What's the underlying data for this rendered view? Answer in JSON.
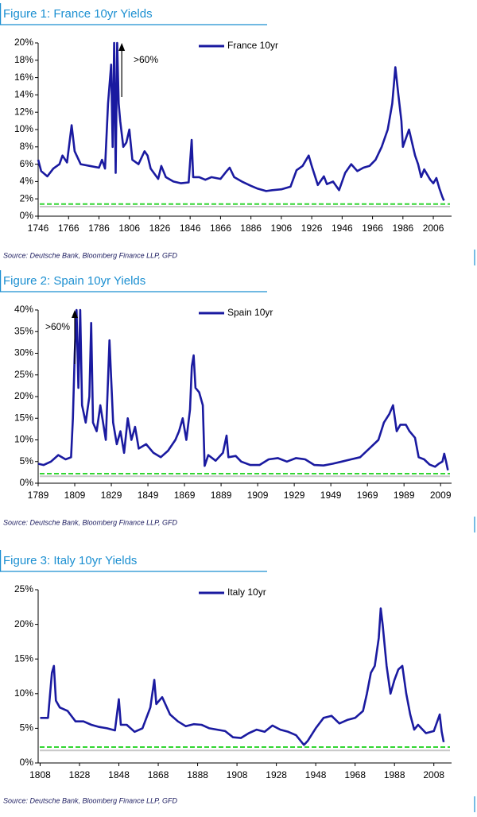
{
  "chart_data": [
    {
      "type": "line",
      "title": "Figure 1: France 10yr Yields",
      "source": "Source: Deutsche Bank, Bloomberg Finance LLP, GFD",
      "annotation": ">60%",
      "legend": "top",
      "xlim": [
        1746,
        2018
      ],
      "ylim": [
        0,
        20
      ],
      "xticks": [
        1746,
        1766,
        1786,
        1806,
        1826,
        1846,
        1866,
        1886,
        1906,
        1926,
        1946,
        1966,
        1986,
        2006
      ],
      "yticks": [
        {
          "value": 0,
          "label": "0%"
        },
        {
          "value": 2,
          "label": "2%"
        },
        {
          "value": 4,
          "label": "4%"
        },
        {
          "value": 6,
          "label": "6%"
        },
        {
          "value": 8,
          "label": "8%"
        },
        {
          "value": 10,
          "label": "10%"
        },
        {
          "value": 12,
          "label": "12%"
        },
        {
          "value": 14,
          "label": "14%"
        },
        {
          "value": 16,
          "label": "16%"
        },
        {
          "value": 18,
          "label": "18%"
        },
        {
          "value": 20,
          "label": "20%"
        }
      ],
      "reference_lines": [
        {
          "value": 1.1,
          "color": "#c8c8c8"
        },
        {
          "value": 1.4,
          "color": "#33d633"
        }
      ],
      "x": [
        1746,
        1748,
        1752,
        1756,
        1760,
        1762,
        1765,
        1768,
        1770,
        1774,
        1780,
        1786,
        1788,
        1790,
        1792,
        1794,
        1795,
        1796,
        1797,
        1798,
        1799,
        1800,
        1802,
        1804,
        1806,
        1808,
        1812,
        1816,
        1818,
        1820,
        1825,
        1827,
        1830,
        1835,
        1840,
        1845,
        1847,
        1848,
        1852,
        1856,
        1860,
        1866,
        1870,
        1872,
        1875,
        1880,
        1886,
        1890,
        1896,
        1900,
        1906,
        1912,
        1916,
        1920,
        1924,
        1926,
        1930,
        1934,
        1936,
        1940,
        1944,
        1948,
        1952,
        1956,
        1960,
        1964,
        1968,
        1972,
        1976,
        1979,
        1981,
        1983,
        1985,
        1986,
        1988,
        1990,
        1992,
        1994,
        1996,
        1998,
        2000,
        2002,
        2004,
        2006,
        2008,
        2010,
        2012,
        2013
      ],
      "series": [
        {
          "name": "France 10yr",
          "color": "#1a1aa0",
          "values": [
            6.5,
            5.2,
            4.6,
            5.5,
            6.0,
            7.0,
            6.2,
            10.5,
            7.5,
            6.0,
            5.8,
            5.6,
            6.5,
            5.5,
            13,
            17.5,
            8,
            20,
            5,
            20,
            13,
            11,
            8,
            8.5,
            10,
            6.5,
            6.0,
            7.5,
            7,
            5.5,
            4.3,
            5.8,
            4.5,
            4.0,
            3.8,
            3.9,
            8.8,
            4.5,
            4.5,
            4.2,
            4.5,
            4.3,
            5.2,
            5.6,
            4.5,
            4.0,
            3.5,
            3.2,
            2.9,
            3.0,
            3.1,
            3.4,
            5.3,
            5.8,
            7.0,
            5.8,
            3.6,
            4.6,
            3.7,
            4.0,
            3.0,
            5.0,
            6.0,
            5.2,
            5.6,
            5.8,
            6.5,
            8,
            10,
            13,
            17.2,
            14,
            11,
            8,
            9,
            10,
            8.5,
            7,
            6,
            4.5,
            5.4,
            4.8,
            4.2,
            3.8,
            4.4,
            3.2,
            2.2,
            1.8
          ]
        }
      ]
    },
    {
      "type": "line",
      "title": "Figure 2: Spain 10yr Yields",
      "source": "Source: Deutsche Bank, Bloomberg Finance LLP, GFD",
      "annotation": ">60%",
      "legend": "top",
      "xlim": [
        1789,
        2015
      ],
      "ylim": [
        0,
        40
      ],
      "xticks": [
        1789,
        1809,
        1829,
        1849,
        1869,
        1889,
        1909,
        1929,
        1949,
        1969,
        1989,
        2009
      ],
      "yticks": [
        {
          "value": 0,
          "label": "0%"
        },
        {
          "value": 5,
          "label": "5%"
        },
        {
          "value": 10,
          "label": "10%"
        },
        {
          "value": 15,
          "label": "15%"
        },
        {
          "value": 20,
          "label": "20%"
        },
        {
          "value": 25,
          "label": "25%"
        },
        {
          "value": 30,
          "label": "30%"
        },
        {
          "value": 35,
          "label": "35%"
        },
        {
          "value": 40,
          "label": "40%"
        }
      ],
      "reference_lines": [
        {
          "value": 1.6,
          "color": "#c8c8c8"
        },
        {
          "value": 2.2,
          "color": "#33d633"
        }
      ],
      "x": [
        1789,
        1792,
        1796,
        1800,
        1804,
        1807,
        1808,
        1809,
        1810,
        1811,
        1812,
        1813,
        1815,
        1817,
        1818,
        1819,
        1821,
        1823,
        1826,
        1828,
        1830,
        1832,
        1834,
        1836,
        1838,
        1840,
        1842,
        1844,
        1848,
        1852,
        1856,
        1860,
        1864,
        1866,
        1868,
        1870,
        1872,
        1873,
        1874,
        1875,
        1877,
        1879,
        1880,
        1882,
        1886,
        1890,
        1892,
        1893,
        1897,
        1900,
        1905,
        1910,
        1915,
        1920,
        1925,
        1930,
        1935,
        1940,
        1945,
        1950,
        1955,
        1960,
        1965,
        1970,
        1975,
        1978,
        1981,
        1983,
        1985,
        1987,
        1990,
        1992,
        1995,
        1997,
        2000,
        2003,
        2006,
        2008,
        2010,
        2011,
        2012,
        2013
      ],
      "series": [
        {
          "name": "Spain 10yr",
          "color": "#1a1aa0",
          "values": [
            4.5,
            4.2,
            5,
            6.5,
            5.5,
            6,
            15,
            30,
            40,
            22,
            40,
            18,
            14,
            20,
            37,
            14,
            12,
            18,
            10,
            33,
            14,
            9,
            12,
            7,
            15,
            10,
            13,
            8,
            9,
            7,
            6,
            7.5,
            10,
            12,
            15,
            10,
            17,
            27,
            29.5,
            22,
            21,
            18,
            4,
            6.5,
            5.2,
            7,
            11,
            6,
            6.3,
            5,
            4.2,
            4.2,
            5.5,
            5.8,
            5,
            5.8,
            5.5,
            4.2,
            4.1,
            4.5,
            5,
            5.5,
            6,
            8,
            10,
            14,
            16,
            18,
            12,
            13.5,
            13.5,
            12,
            10.5,
            6,
            5.5,
            4.3,
            3.8,
            4.5,
            5,
            6.8,
            5,
            3
          ]
        }
      ]
    },
    {
      "type": "line",
      "title": "Figure 3: Italy 10yr Yields",
      "source": "Source: Deutsche Bank, Bloomberg Finance LLP, GFD",
      "legend": "top",
      "xlim": [
        1807,
        2017
      ],
      "ylim": [
        0,
        25
      ],
      "xticks": [
        1808,
        1828,
        1848,
        1868,
        1888,
        1908,
        1928,
        1948,
        1968,
        1988,
        2008
      ],
      "yticks": [
        {
          "value": 0,
          "label": "0%"
        },
        {
          "value": 5,
          "label": "5%"
        },
        {
          "value": 10,
          "label": "10%"
        },
        {
          "value": 15,
          "label": "15%"
        },
        {
          "value": 20,
          "label": "20%"
        },
        {
          "value": 25,
          "label": "25%"
        }
      ],
      "reference_lines": [
        {
          "value": 1.8,
          "color": "#c8c8c8"
        },
        {
          "value": 2.3,
          "color": "#33d633"
        }
      ],
      "x": [
        1808,
        1812,
        1814,
        1815,
        1816,
        1818,
        1822,
        1826,
        1830,
        1834,
        1838,
        1842,
        1846,
        1848,
        1849,
        1852,
        1856,
        1860,
        1864,
        1866,
        1867,
        1870,
        1874,
        1878,
        1882,
        1886,
        1890,
        1894,
        1898,
        1902,
        1906,
        1910,
        1914,
        1918,
        1922,
        1926,
        1930,
        1934,
        1938,
        1942,
        1944,
        1948,
        1952,
        1956,
        1960,
        1964,
        1968,
        1972,
        1974,
        1976,
        1978,
        1980,
        1981,
        1982,
        1984,
        1986,
        1988,
        1990,
        1992,
        1994,
        1996,
        1998,
        2000,
        2004,
        2008,
        2011,
        2012,
        2013
      ],
      "series": [
        {
          "name": "Italy 10yr",
          "color": "#1a1aa0",
          "values": [
            6.5,
            6.5,
            13,
            14,
            9,
            8,
            7.5,
            6,
            6,
            5.5,
            5.2,
            5,
            4.7,
            9.2,
            5.5,
            5.5,
            4.5,
            5,
            8,
            12,
            8.5,
            9.5,
            7,
            6,
            5.3,
            5.6,
            5.5,
            5,
            4.8,
            4.6,
            3.7,
            3.6,
            4.3,
            4.8,
            4.5,
            5.4,
            4.8,
            4.5,
            4.0,
            2.6,
            3.2,
            5.0,
            6.5,
            6.8,
            5.7,
            6.2,
            6.5,
            7.5,
            10,
            13,
            14,
            18,
            22.3,
            20,
            14,
            10,
            12,
            13.5,
            14,
            10,
            7,
            4.8,
            5.5,
            4.3,
            4.6,
            7,
            4.5,
            3
          ]
        }
      ]
    }
  ]
}
